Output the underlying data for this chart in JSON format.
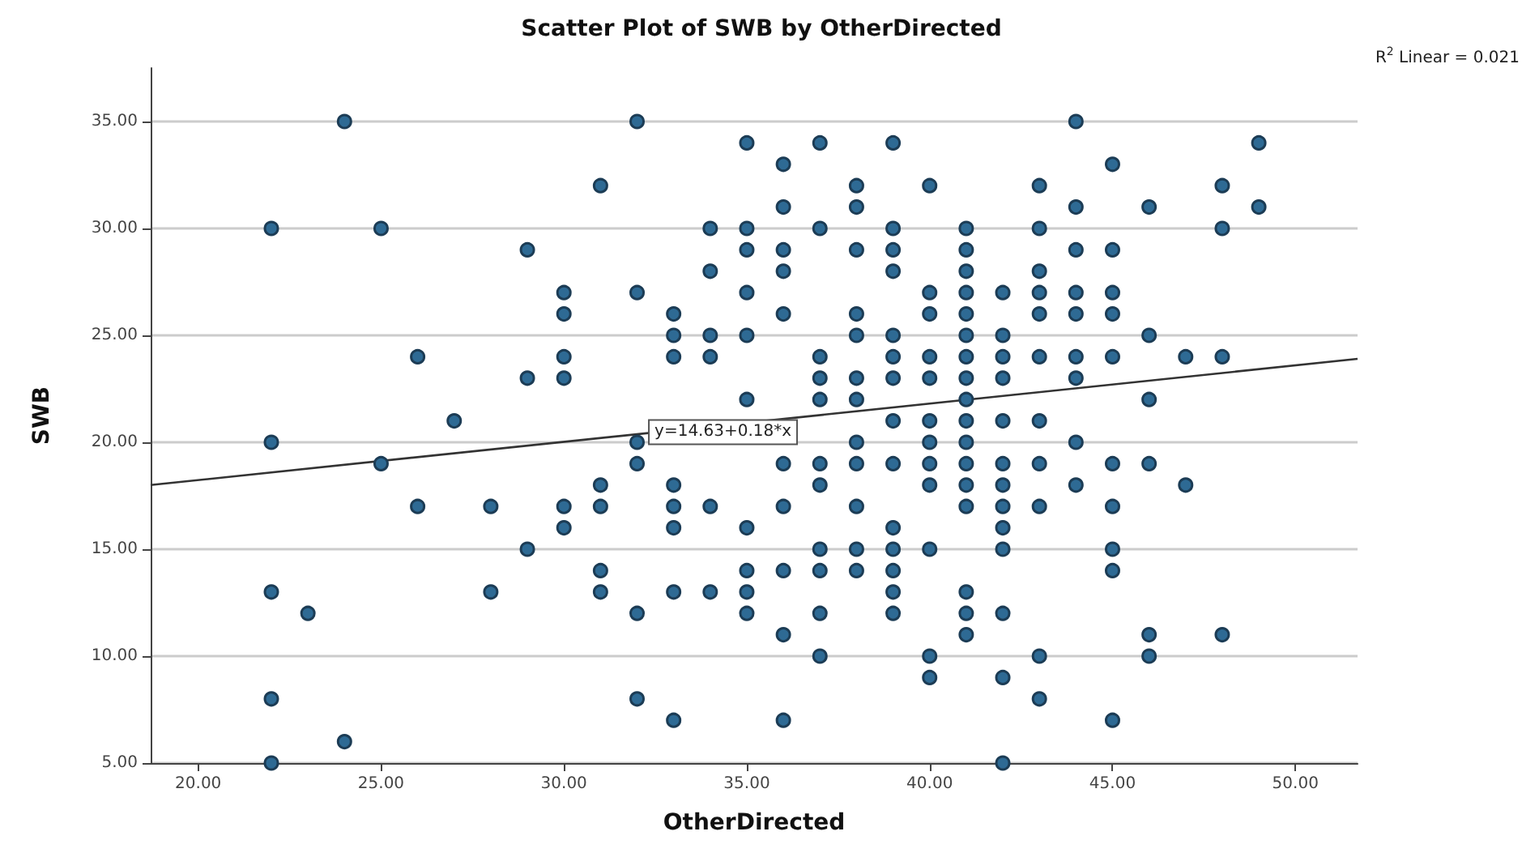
{
  "chart_data": {
    "type": "scatter",
    "title": "Scatter Plot of SWB by OtherDirected",
    "xlabel": "OtherDirected",
    "ylabel": "SWB",
    "annotations": [
      "R$^{2}$ Linear = 0.021",
      {
        "text": "y=14.63+0.18*x",
        "x": 32.3,
        "y": 20.4
      }
    ],
    "xlim": [
      18.7,
      51.7
    ],
    "ylim": [
      5,
      37.5
    ],
    "xticks": [
      {
        "value": 20,
        "label": "20.00"
      },
      {
        "value": 25,
        "label": "25.00"
      },
      {
        "value": 30,
        "label": "30.00"
      },
      {
        "value": 35,
        "label": "35.00"
      },
      {
        "value": 40,
        "label": "40.00"
      },
      {
        "value": 45,
        "label": "45.00"
      },
      {
        "value": 50,
        "label": "50.00"
      }
    ],
    "yticks": [
      {
        "value": 5,
        "label": "5.00"
      },
      {
        "value": 10,
        "label": "10.00"
      },
      {
        "value": 15,
        "label": "15.00"
      },
      {
        "value": 20,
        "label": "20.00"
      },
      {
        "value": 25,
        "label": "25.00"
      },
      {
        "value": 30,
        "label": "30.00"
      },
      {
        "value": 35,
        "label": "35.00"
      }
    ],
    "grid": "y",
    "marker": "circle",
    "series": [
      {
        "type": "scatter",
        "color": "#2e6a94",
        "x": [
          24,
          32,
          35,
          37,
          36,
          31,
          36,
          22,
          25,
          34,
          35,
          37,
          29,
          35,
          36,
          34,
          36,
          30,
          32,
          35,
          30,
          33,
          36,
          33,
          34,
          35,
          26,
          30,
          33,
          34,
          37,
          29,
          30,
          37,
          35,
          37,
          27,
          22,
          32,
          44,
          39,
          49,
          45,
          38,
          40,
          43,
          48,
          38,
          44,
          46,
          49,
          39,
          41,
          43,
          48,
          38,
          39,
          41,
          44,
          45,
          39,
          41,
          43,
          40,
          41,
          42,
          43,
          44,
          45,
          38,
          40,
          41,
          43,
          44,
          45,
          38,
          39,
          41,
          42,
          46,
          39,
          40,
          41,
          42,
          43,
          44,
          45,
          47,
          48,
          38,
          39,
          40,
          41,
          42,
          44,
          38,
          41,
          46,
          39,
          40,
          41,
          42,
          43,
          38,
          40,
          41,
          44,
          25,
          32,
          36,
          37,
          31,
          33,
          37,
          26,
          28,
          30,
          31,
          33,
          34,
          36,
          30,
          33,
          35,
          29,
          37,
          31,
          35,
          36,
          37,
          22,
          28,
          31,
          33,
          34,
          35,
          23,
          32,
          35,
          37,
          36,
          37,
          22,
          32,
          33,
          36,
          24,
          22,
          38,
          39,
          40,
          41,
          42,
          43,
          45,
          46,
          40,
          41,
          42,
          44,
          47,
          38,
          41,
          42,
          43,
          45,
          39,
          42,
          38,
          39,
          40,
          42,
          45,
          38,
          39,
          45,
          39,
          41,
          39,
          41,
          42,
          41,
          46,
          48,
          40,
          43,
          46,
          40,
          42,
          43,
          45,
          42
        ],
        "values": [
          35,
          35,
          34,
          34,
          33,
          32,
          31,
          30,
          30,
          30,
          30,
          30,
          29,
          29,
          29,
          28,
          28,
          27,
          27,
          27,
          26,
          26,
          26,
          25,
          25,
          25,
          24,
          24,
          24,
          24,
          24,
          23,
          23,
          23,
          22,
          22,
          21,
          20,
          20,
          35,
          34,
          34,
          33,
          32,
          32,
          32,
          32,
          31,
          31,
          31,
          31,
          30,
          30,
          30,
          30,
          29,
          29,
          29,
          29,
          29,
          28,
          28,
          28,
          27,
          27,
          27,
          27,
          27,
          27,
          26,
          26,
          26,
          26,
          26,
          26,
          25,
          25,
          25,
          25,
          25,
          24,
          24,
          24,
          24,
          24,
          24,
          24,
          24,
          24,
          23,
          23,
          23,
          23,
          23,
          23,
          22,
          22,
          22,
          21,
          21,
          21,
          21,
          21,
          20,
          20,
          20,
          20,
          19,
          19,
          19,
          19,
          18,
          18,
          18,
          17,
          17,
          17,
          17,
          17,
          17,
          17,
          16,
          16,
          16,
          15,
          15,
          14,
          14,
          14,
          14,
          13,
          13,
          13,
          13,
          13,
          13,
          12,
          12,
          12,
          12,
          11,
          10,
          8,
          8,
          7,
          7,
          6,
          5,
          19,
          19,
          19,
          19,
          19,
          19,
          19,
          19,
          18,
          18,
          18,
          18,
          18,
          17,
          17,
          17,
          17,
          17,
          16,
          16,
          15,
          15,
          15,
          15,
          15,
          14,
          14,
          14,
          13,
          13,
          12,
          12,
          12,
          11,
          11,
          11,
          10,
          10,
          10,
          9,
          9,
          8,
          7,
          5
        ]
      },
      {
        "type": "line",
        "color": "#333333",
        "marker": "none",
        "x": [
          18.7,
          51.7
        ],
        "values": [
          18.0,
          23.9
        ]
      }
    ]
  }
}
